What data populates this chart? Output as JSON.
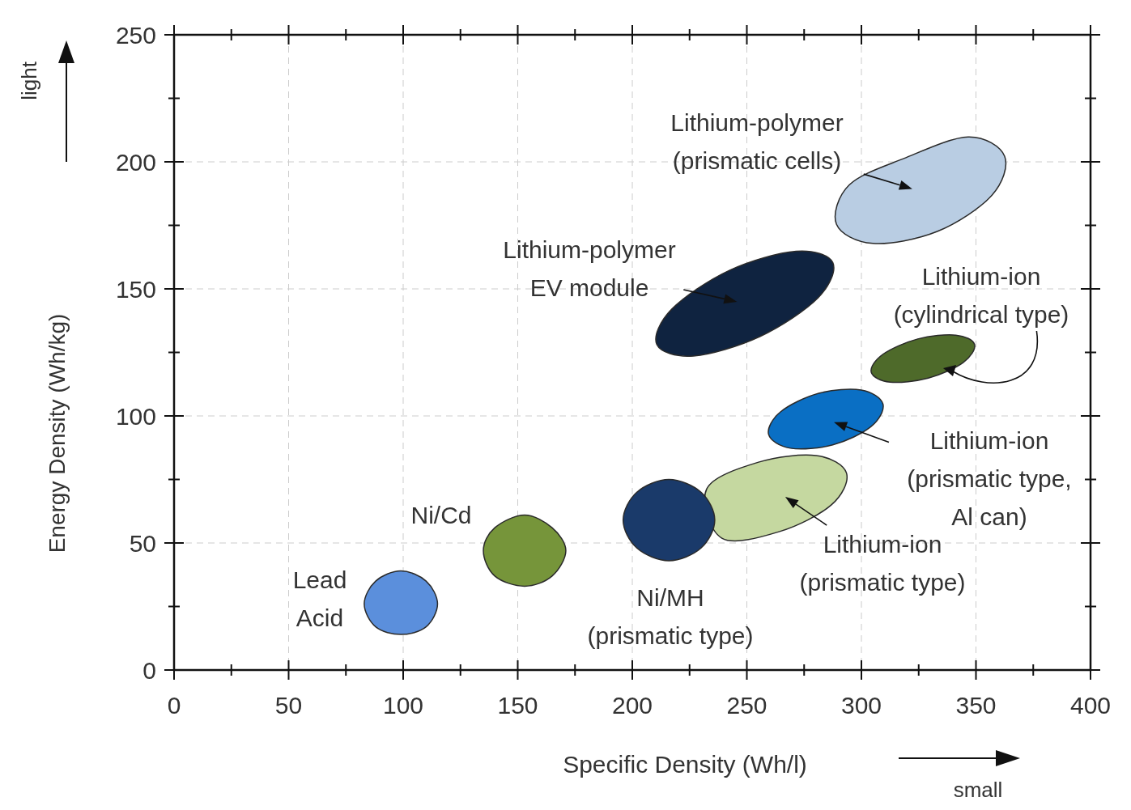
{
  "chart_data": {
    "type": "area",
    "xlabel": "Specific Density (Wh/l)",
    "ylabel": "Energy Density (Wh/kg)",
    "xlim": [
      0,
      400
    ],
    "ylim": [
      0,
      250
    ],
    "xticks": [
      0,
      {
        "value": 25,
        "label": null
      },
      50,
      {
        "value": 75,
        "label": null
      },
      100,
      {
        "value": 125,
        "label": null
      },
      150,
      {
        "value": 175,
        "label": null
      },
      200,
      {
        "value": 225,
        "label": null
      },
      250,
      {
        "value": 275,
        "label": null
      },
      300,
      {
        "value": 325,
        "label": null
      },
      350,
      {
        "value": 375,
        "label": null
      },
      400
    ],
    "yticks": [
      0,
      {
        "value": 25,
        "label": null
      },
      50,
      {
        "value": 75,
        "label": null
      },
      100,
      {
        "value": 125,
        "label": null
      },
      150,
      {
        "value": 175,
        "label": null
      },
      200,
      {
        "value": 225,
        "label": null
      },
      250
    ],
    "grid": true,
    "series": [
      {
        "color": "#5b8fdc",
        "x": [
          115,
          110,
          99,
          88,
          83,
          88,
          99,
          110
        ],
        "values": [
          26,
          35,
          39,
          35,
          26,
          17,
          14,
          17
        ]
      },
      {
        "color": "#76953a",
        "x": [
          171,
          165,
          153,
          140,
          135,
          140,
          153,
          165
        ],
        "values": [
          47,
          56,
          61,
          56,
          47,
          37,
          33,
          37
        ]
      },
      {
        "color": "#c5d8a0",
        "x": [
          293.5,
          286.9,
          264.3,
          239.1,
          232.5,
          255.1,
          280.3
        ],
        "values": [
          77.5,
          65.0,
          54.5,
          51.9,
          71.3,
          81.8,
          84.4
        ]
      },
      {
        "color": "#1a3a6a",
        "x": [
          236,
          230,
          216,
          202,
          196,
          202,
          216,
          230
        ],
        "values": [
          59,
          70,
          75,
          70,
          59,
          48,
          43,
          48
        ]
      },
      {
        "color": "#0a6fc4",
        "x": [
          309.4,
          304.2,
          287.5,
          269.0,
          259.5,
          264.7,
          281.4,
          299.9
        ],
        "values": [
          104.7,
          95.8,
          88.6,
          87.3,
          92.7,
          101.6,
          108.9,
          110.2
        ]
      },
      {
        "color": "#4e6a2a",
        "x": [
          349.4,
          344.4,
          329.2,
          312.5,
          304.3,
          309.3,
          324.6,
          341.2
        ],
        "values": [
          128.1,
          121.0,
          114.9,
          113.3,
          117.2,
          124.2,
          130.3,
          131.8
        ]
      },
      {
        "color": "#0f2340",
        "x": [
          287.5,
          281.1,
          255.8,
          226.7,
          210.7,
          217.2,
          242.4,
          271.5
        ],
        "values": [
          160.4,
          146.5,
          131.3,
          123.6,
          128.1,
          142.0,
          157.3,
          164.8
        ]
      },
      {
        "color": "#b9cde3",
        "x": [
          362.5,
          356.9,
          333.1,
          305.0,
          289.1,
          294.7,
          318.5,
          346.6
        ],
        "values": [
          202.2,
          186.8,
          172.6,
          167.9,
          175.5,
          190.9,
          201.3,
          209.8
        ]
      }
    ],
    "annotations": [
      "Lead\nAcid",
      "Ni/Cd",
      "Lithium-ion\n(prismatic type)",
      "Ni/MH\n(prismatic type)",
      "Lithium-ion\n(prismatic type,\nAl can)",
      {
        "text": "Lithium-ion\n(cylindrical type)",
        "x": 335.7,
        "y": 118.8
      },
      "Lithium-polymer\nEV module",
      "Lithium-polymer\n(prismatic cells)",
      "light",
      "small"
    ]
  }
}
